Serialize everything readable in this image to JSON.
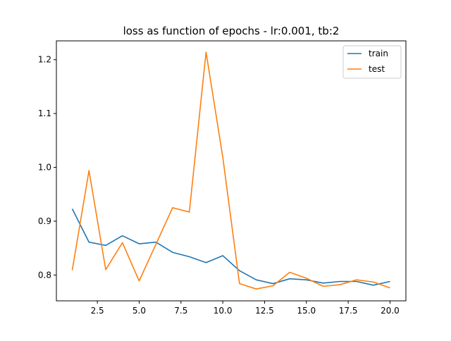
{
  "chart_data": {
    "type": "line",
    "title": "loss as function of epochs - lr:0.001, tb:2",
    "xlabel": "",
    "ylabel": "",
    "x": [
      1,
      2,
      3,
      4,
      5,
      6,
      7,
      8,
      9,
      10,
      11,
      12,
      13,
      14,
      15,
      16,
      17,
      18,
      19,
      20
    ],
    "xlim": [
      0.05,
      20.95
    ],
    "ylim": [
      0.752,
      1.235
    ],
    "xticks": [
      2.5,
      5.0,
      7.5,
      10.0,
      12.5,
      15.0,
      17.5,
      20.0
    ],
    "xtick_labels": [
      "2.5",
      "5.0",
      "7.5",
      "10.0",
      "12.5",
      "15.0",
      "17.5",
      "20.0"
    ],
    "yticks": [
      0.8,
      0.9,
      1.0,
      1.1,
      1.2
    ],
    "ytick_labels": [
      "0.8",
      "0.9",
      "1.0",
      "1.1",
      "1.2"
    ],
    "grid": false,
    "legend_position": "top-right",
    "series": [
      {
        "name": "train",
        "color": "#1f77b4",
        "values": [
          0.923,
          0.861,
          0.855,
          0.873,
          0.858,
          0.861,
          0.842,
          0.834,
          0.823,
          0.836,
          0.808,
          0.791,
          0.784,
          0.793,
          0.791,
          0.785,
          0.788,
          0.788,
          0.781,
          0.788
        ]
      },
      {
        "name": "test",
        "color": "#ff7f0e",
        "values": [
          0.809,
          0.994,
          0.81,
          0.86,
          0.789,
          0.857,
          0.925,
          0.917,
          1.214,
          1.019,
          0.784,
          0.774,
          0.78,
          0.805,
          0.794,
          0.779,
          0.782,
          0.791,
          0.787,
          0.776
        ]
      }
    ]
  }
}
